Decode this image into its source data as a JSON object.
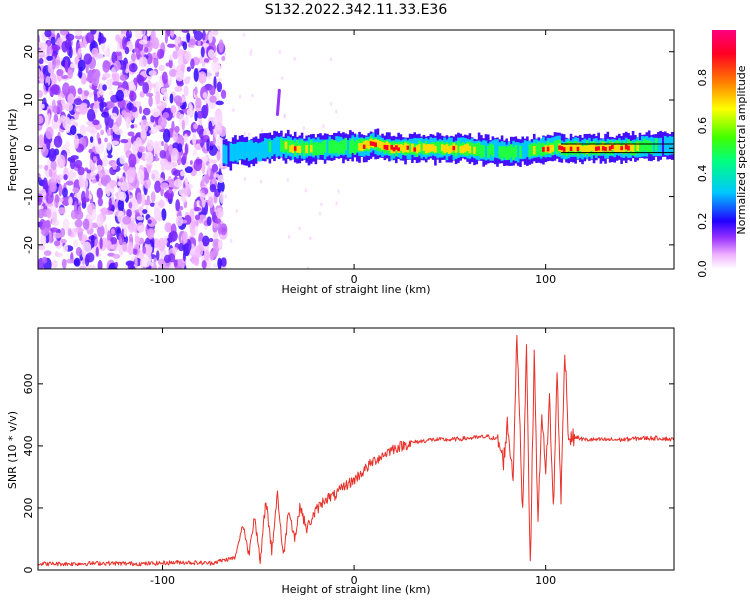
{
  "figure_title": "S132.2022.342.11.33.E36",
  "colors": {
    "snr_line": "#e8322a",
    "axes": "#000000",
    "colormap": [
      "#ffffff",
      "#f4b8ff",
      "#b35cff",
      "#5a00e6",
      "#0000ff",
      "#00d4ff",
      "#00ff9c",
      "#5cff00",
      "#ffff00",
      "#ff7800",
      "#ff0033",
      "#ff007f"
    ]
  },
  "chart_data": [
    {
      "type": "heatmap",
      "title": "",
      "xlabel": "Height of straight line (km)",
      "ylabel": "Frequency (Hz)",
      "xlim": [
        -165,
        167
      ],
      "ylim": [
        -25,
        24.5
      ],
      "xticks": [
        -100,
        0,
        100
      ],
      "yticks": [
        -20,
        -10,
        0,
        10,
        20
      ],
      "colorbar": {
        "label": "Normalized spectral amplitude",
        "range": [
          0,
          1
        ],
        "ticks": [
          "0.0",
          "0.2",
          "0.4",
          "0.6",
          "0.8"
        ]
      },
      "noise_region_x": [
        -165,
        -68
      ],
      "ridge": {
        "x": [
          -68,
          -60,
          -50,
          -40,
          -30,
          -20,
          -10,
          0,
          5,
          10,
          15,
          20,
          30,
          40,
          50,
          60,
          70,
          80,
          90,
          95,
          100,
          103,
          105,
          108,
          120,
          140,
          160,
          167
        ],
        "y": [
          -1.5,
          -0.5,
          -0.5,
          0.5,
          0.0,
          0.0,
          0.2,
          0.5,
          0.5,
          1.0,
          0.5,
          0.0,
          0.0,
          0.0,
          0.0,
          0.0,
          -0.5,
          -0.8,
          -0.5,
          -0.3,
          0.0,
          0.2,
          0.5,
          0.0,
          0.0,
          0.0,
          0.5,
          0.7
        ],
        "amplitude": [
          0.3,
          0.4,
          0.4,
          0.6,
          0.85,
          0.6,
          0.6,
          0.55,
          0.9,
          0.95,
          0.9,
          0.9,
          0.85,
          0.8,
          0.85,
          0.8,
          0.6,
          0.55,
          0.6,
          0.7,
          0.85,
          0.9,
          0.7,
          0.95,
          0.95,
          0.95,
          0.4,
          0.35
        ]
      },
      "spike": {
        "x": -40,
        "y": [
          7,
          12
        ]
      }
    },
    {
      "type": "line",
      "title": "",
      "xlabel": "Height of straight line (km)",
      "ylabel": "SNR (10 * v/v)",
      "xlim": [
        -165,
        167
      ],
      "ylim": [
        0,
        780
      ],
      "xticks": [
        -100,
        0,
        100
      ],
      "yticks": [
        0,
        200,
        400,
        600
      ],
      "series": [
        {
          "x": [
            -165,
            -150,
            -130,
            -110,
            -90,
            -75,
            -62,
            -58,
            -55,
            -52,
            -49,
            -46,
            -43,
            -40,
            -37,
            -34,
            -31,
            -28,
            -25,
            -20,
            -15,
            -10,
            -5,
            0,
            5,
            10,
            15,
            20,
            25,
            30,
            40,
            50,
            60,
            70,
            75,
            78,
            80,
            83,
            85,
            88,
            90,
            92,
            94,
            96,
            98,
            100,
            102,
            104,
            106,
            108,
            110,
            112,
            115,
            120,
            130,
            140,
            150,
            160,
            167
          ],
          "y": [
            20,
            20,
            22,
            20,
            25,
            22,
            40,
            150,
            50,
            180,
            20,
            230,
            60,
            250,
            40,
            200,
            100,
            210,
            130,
            190,
            230,
            240,
            270,
            290,
            320,
            350,
            370,
            390,
            400,
            410,
            420,
            420,
            425,
            430,
            420,
            350,
            470,
            300,
            760,
            180,
            740,
            0,
            700,
            150,
            520,
            300,
            560,
            190,
            640,
            220,
            720,
            420,
            430,
            420,
            420,
            420,
            425,
            425,
            420
          ]
        }
      ]
    }
  ]
}
